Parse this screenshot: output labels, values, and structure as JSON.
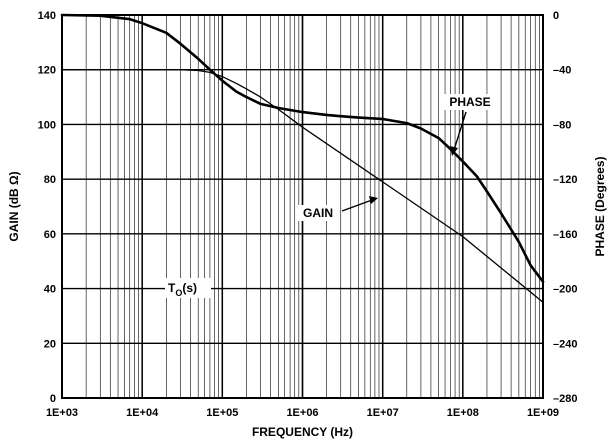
{
  "chart_data": {
    "type": "line",
    "xlabel": "FREQUENCY (Hz)",
    "ylabel": "GAIN (dB Ω)",
    "y2label": "PHASE (Degrees)",
    "x_scale": "log",
    "xlim": [
      1000,
      1000000000
    ],
    "ylim": [
      0,
      140
    ],
    "y2lim": [
      -280,
      0
    ],
    "grid": true,
    "x_ticks": [
      {
        "value": 1000,
        "label": "1E+03"
      },
      {
        "value": 10000,
        "label": "1E+04"
      },
      {
        "value": 100000,
        "label": "1E+05"
      },
      {
        "value": 1000000,
        "label": "1E+06"
      },
      {
        "value": 10000000,
        "label": "1E+07"
      },
      {
        "value": 100000000,
        "label": "1E+08"
      },
      {
        "value": 1000000000,
        "label": "1E+09"
      }
    ],
    "y_ticks": [
      {
        "value": 0,
        "label": "0"
      },
      {
        "value": 20,
        "label": "20"
      },
      {
        "value": 40,
        "label": "40"
      },
      {
        "value": 60,
        "label": "60"
      },
      {
        "value": 80,
        "label": "80"
      },
      {
        "value": 100,
        "label": "100"
      },
      {
        "value": 120,
        "label": "120"
      },
      {
        "value": 140,
        "label": "140"
      }
    ],
    "y2_ticks": [
      {
        "value": 0,
        "label": "0"
      },
      {
        "value": -40,
        "label": "–40"
      },
      {
        "value": -80,
        "label": "–80"
      },
      {
        "value": -120,
        "label": "–120"
      },
      {
        "value": -160,
        "label": "–160"
      },
      {
        "value": -200,
        "label": "–200"
      },
      {
        "value": -240,
        "label": "–240"
      },
      {
        "value": -280,
        "label": "–280"
      }
    ],
    "series": [
      {
        "name": "GAIN",
        "axis": "left",
        "x": [
          1000,
          10000,
          30000,
          50000,
          70000,
          100000,
          150000,
          200000,
          300000,
          500000,
          1000000,
          10000000,
          100000000,
          1000000000
        ],
        "y": [
          120,
          120,
          120,
          119.7,
          119,
          117.5,
          115,
          113,
          110,
          105.5,
          99,
          79,
          59,
          35
        ]
      },
      {
        "name": "PHASE",
        "axis": "right",
        "x": [
          1000,
          3000,
          7000,
          10000,
          20000,
          30000,
          50000,
          70000,
          100000,
          150000,
          200000,
          300000,
          500000,
          1000000,
          2000000,
          3000000,
          5000000,
          10000000,
          20000000,
          30000000,
          50000000,
          70000000,
          100000000,
          150000000,
          200000000,
          300000000,
          500000000,
          700000000,
          1000000000
        ],
        "y": [
          0,
          -0.5,
          -3,
          -6,
          -13,
          -21,
          -32,
          -40,
          -48,
          -56,
          -60,
          -65,
          -68,
          -71,
          -73,
          -74,
          -75,
          -76,
          -79,
          -83,
          -90,
          -98,
          -107,
          -118,
          -129,
          -145,
          -166,
          -183,
          -195
        ]
      }
    ],
    "annotations": [
      {
        "text": "PHASE"
      },
      {
        "text": "GAIN"
      },
      {
        "text": "T",
        "sub": "O",
        "suffix": "(s)"
      }
    ]
  }
}
